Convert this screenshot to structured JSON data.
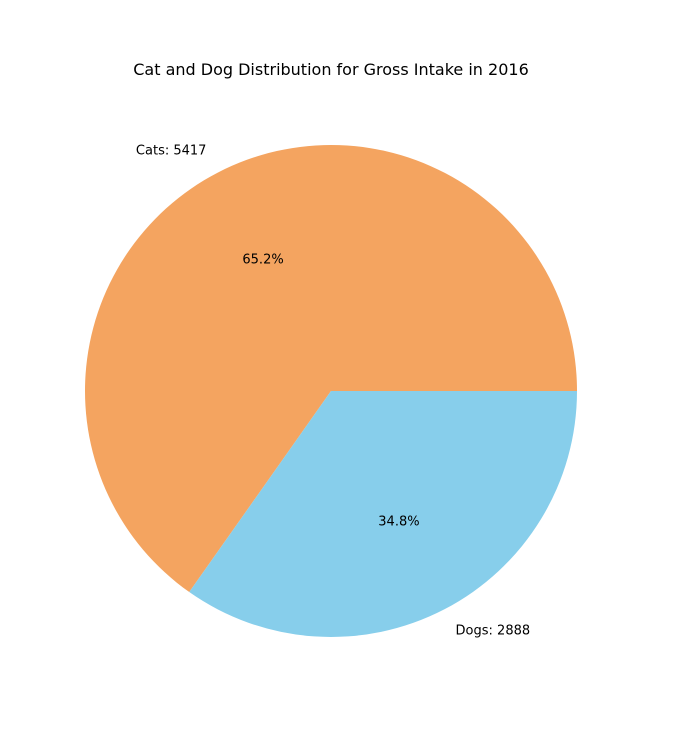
{
  "chart_data": {
    "type": "pie",
    "title": "Cat and Dog Distribution for Gross Intake in 2016",
    "slices": [
      {
        "name": "Cats",
        "value": 5417,
        "label": "Cats: 5417",
        "pct_label": "65.2%",
        "color": "#f4a460"
      },
      {
        "name": "Dogs",
        "value": 2888,
        "label": "Dogs: 2888",
        "pct_label": "34.8%",
        "color": "#87ceeb"
      }
    ]
  }
}
